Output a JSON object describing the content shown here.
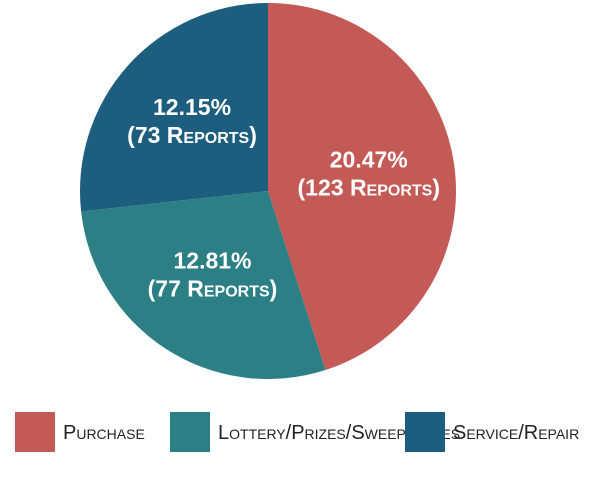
{
  "chart_data": {
    "type": "pie",
    "categories": [
      "Purchase",
      "Lottery/Prizes/Sweepstakes",
      "Service/Repair"
    ],
    "values": [
      20.47,
      12.81,
      12.15
    ],
    "value_labels": [
      "20.47%",
      "12.81%",
      "12.15%"
    ],
    "report_labels": [
      "(123 Reports)",
      "(77 Reports)",
      "(73 Reports)"
    ],
    "colors": [
      "#c45a55",
      "#2b7f85",
      "#1d5e7e"
    ],
    "legend": "bottom"
  }
}
